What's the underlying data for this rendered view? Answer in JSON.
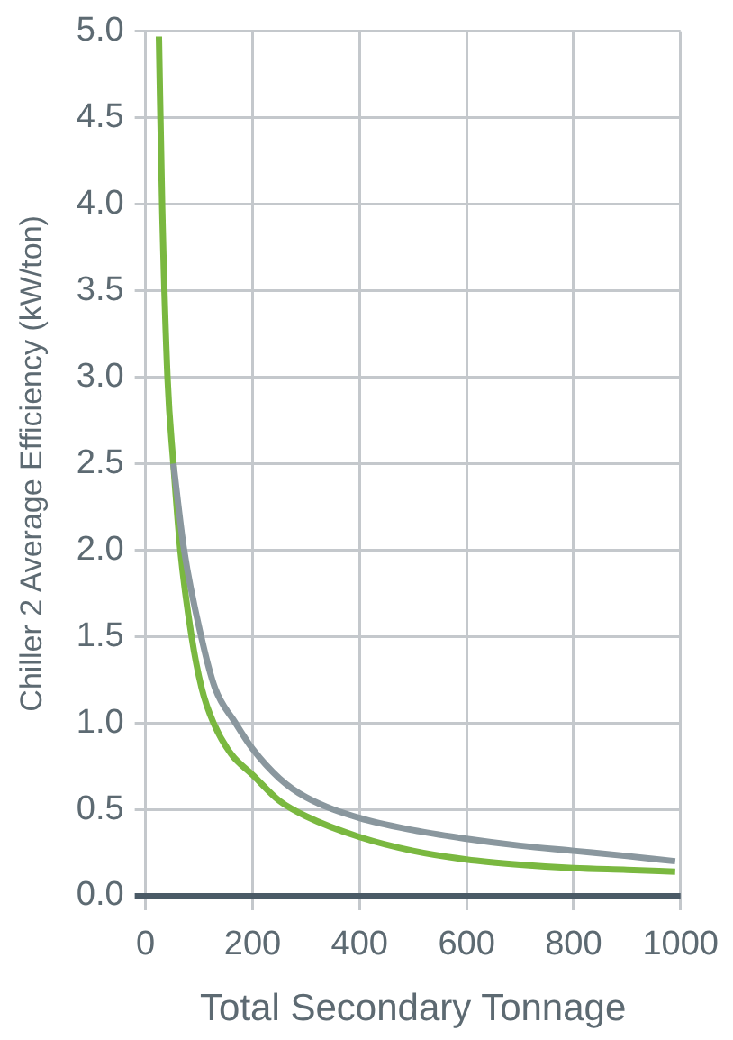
{
  "chart_data": {
    "type": "line",
    "xlabel": "Total Secondary Tonnage",
    "ylabel": "Chiller 2 Average Efficiency (kW/ton)",
    "xlim": [
      0,
      1000
    ],
    "xticks": [
      0,
      200,
      400,
      600,
      800,
      1000
    ],
    "ylim": [
      0,
      5
    ],
    "yticks": [
      {
        "value": 0,
        "label": "0.0"
      },
      {
        "value": 0.5,
        "label": "0.5"
      },
      {
        "value": 1,
        "label": "1.0"
      },
      {
        "value": 1.5,
        "label": "1.5"
      },
      {
        "value": 2,
        "label": "2.0"
      },
      {
        "value": 2.5,
        "label": "2.5"
      },
      {
        "value": 3,
        "label": "3.0"
      },
      {
        "value": 3.5,
        "label": "3.5"
      },
      {
        "value": 4,
        "label": "4.0"
      },
      {
        "value": 4.5,
        "label": "4.5"
      },
      {
        "value": 5,
        "label": "5.0"
      }
    ],
    "grid": true,
    "legend": false,
    "marker": "none",
    "line_style": "solid",
    "series": [
      {
        "color": "#8a979e",
        "x": [
          52,
          72,
          104,
          130,
          168,
          200,
          250,
          300,
          400,
          500,
          600,
          700,
          800,
          900,
          990
        ],
        "values": [
          2.5,
          2.0,
          1.5,
          1.2,
          1.0,
          0.85,
          0.68,
          0.57,
          0.45,
          0.38,
          0.33,
          0.29,
          0.26,
          0.23,
          0.2
        ]
      },
      {
        "color": "#7ab840",
        "x": [
          25,
          31,
          41,
          52,
          65,
          86,
          105,
          127,
          160,
          200,
          250,
          300,
          400,
          500,
          600,
          700,
          800,
          900,
          990
        ],
        "values": [
          4.97,
          4.0,
          3.0,
          2.5,
          2.0,
          1.5,
          1.2,
          1.0,
          0.82,
          0.7,
          0.55,
          0.46,
          0.34,
          0.26,
          0.21,
          0.18,
          0.16,
          0.15,
          0.14
        ]
      }
    ]
  }
}
